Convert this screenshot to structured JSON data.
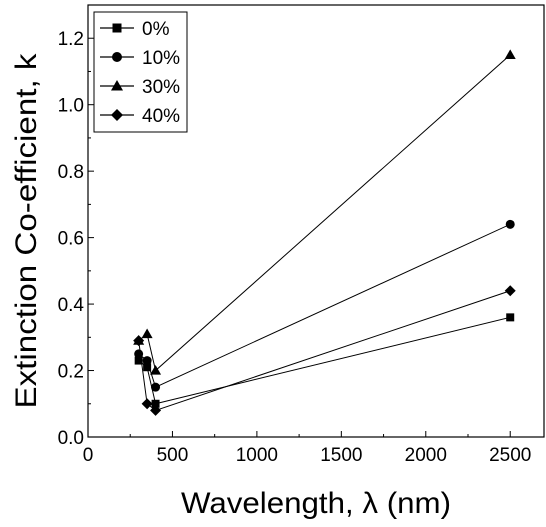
{
  "chart_data": {
    "type": "scatter",
    "xlabel": "Wavelength, λ (nm)",
    "ylabel": "Extinction Co-efficient, k",
    "xlim": [
      0,
      2700
    ],
    "ylim": [
      0.0,
      1.3
    ],
    "xticks": [
      0,
      500,
      1000,
      1500,
      2000,
      2500
    ],
    "yticks": [
      0.0,
      0.2,
      0.4,
      0.6,
      0.8,
      1.0,
      1.2
    ],
    "xtick_labels": [
      "0",
      "500",
      "1000",
      "1500",
      "2000",
      "2500"
    ],
    "ytick_labels": [
      "0.0",
      "0.2",
      "0.4",
      "0.6",
      "0.8",
      "1.0",
      "1.2"
    ],
    "grid": false,
    "legend_position": "top-left",
    "series": [
      {
        "name": "0%",
        "marker": "square",
        "x": [
          300,
          350,
          400,
          2500
        ],
        "y": [
          0.23,
          0.21,
          0.1,
          0.36
        ]
      },
      {
        "name": "10%",
        "marker": "circle",
        "x": [
          300,
          350,
          400,
          2500
        ],
        "y": [
          0.25,
          0.23,
          0.15,
          0.64
        ]
      },
      {
        "name": "30%",
        "marker": "triangle",
        "x": [
          300,
          350,
          400,
          2500
        ],
        "y": [
          0.29,
          0.31,
          0.2,
          1.15
        ]
      },
      {
        "name": "40%",
        "marker": "diamond",
        "x": [
          300,
          350,
          400,
          2500
        ],
        "y": [
          0.29,
          0.1,
          0.08,
          0.44
        ]
      }
    ]
  }
}
